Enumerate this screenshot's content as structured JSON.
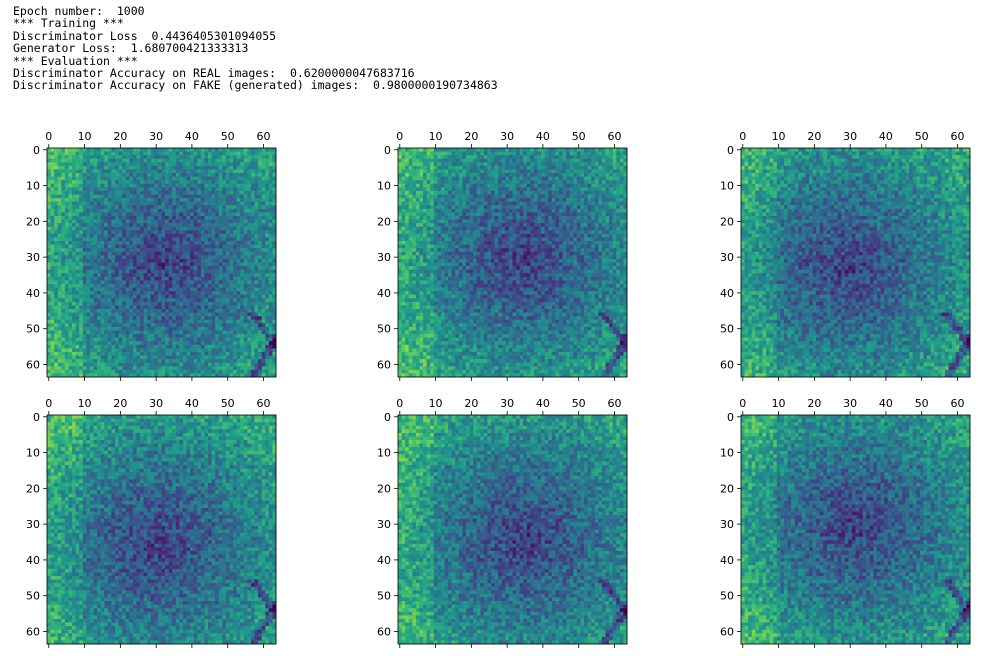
{
  "output": {
    "lines": [
      "Epoch number:  1000",
      "*** Training ***",
      "Discriminator Loss  0.4436405301094055",
      "Generator Loss:  1.680700421333313",
      "*** Evaluation ***",
      "Discriminator Accuracy on REAL images:  0.6200000047683716",
      "Discriminator Accuracy on FAKE (generated) images:  0.9800000190734863"
    ],
    "panels": [
      {
        "xlim": [
          -0.5,
          63.5
        ],
        "ylim": [
          63.5,
          -0.5
        ],
        "xticks": [
          0,
          10,
          20,
          30,
          40,
          50,
          60
        ],
        "yticks": [
          0,
          10,
          20,
          30,
          40,
          50,
          60
        ]
      },
      {
        "xlim": [
          -0.5,
          63.5
        ],
        "ylim": [
          63.5,
          -0.5
        ],
        "xticks": [
          0,
          10,
          20,
          30,
          40,
          50,
          60
        ],
        "yticks": [
          0,
          10,
          20,
          30,
          40,
          50,
          60
        ]
      },
      {
        "xlim": [
          -0.5,
          63.5
        ],
        "ylim": [
          63.5,
          -0.5
        ],
        "xticks": [
          0,
          10,
          20,
          30,
          40,
          50,
          60
        ],
        "yticks": [
          0,
          10,
          20,
          30,
          40,
          50,
          60
        ]
      },
      {
        "xlim": [
          -0.5,
          63.5
        ],
        "ylim": [
          63.5,
          -0.5
        ],
        "xticks": [
          0,
          10,
          20,
          30,
          40,
          50,
          60
        ],
        "yticks": [
          0,
          10,
          20,
          30,
          40,
          50,
          60
        ]
      },
      {
        "xlim": [
          -0.5,
          63.5
        ],
        "ylim": [
          63.5,
          -0.5
        ],
        "xticks": [
          0,
          10,
          20,
          30,
          40,
          50,
          60
        ],
        "yticks": [
          0,
          10,
          20,
          30,
          40,
          50,
          60
        ]
      },
      {
        "xlim": [
          -0.5,
          63.5
        ],
        "ylim": [
          63.5,
          -0.5
        ],
        "xticks": [
          0,
          10,
          20,
          30,
          40,
          50,
          60
        ],
        "yticks": [
          0,
          10,
          20,
          30,
          40,
          50,
          60
        ]
      }
    ]
  }
}
